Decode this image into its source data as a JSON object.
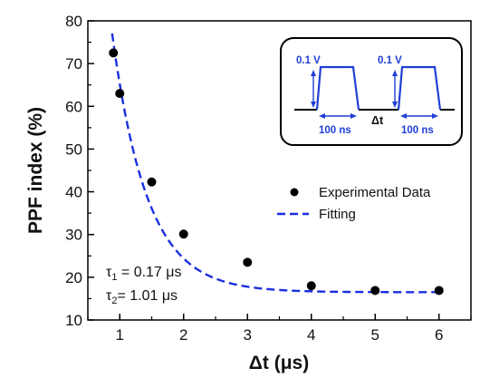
{
  "chart_data": {
    "type": "scatter",
    "xlabel": "Δt (μs)",
    "ylabel": "PPF index (%)",
    "xlim": [
      0.5,
      6.5
    ],
    "ylim": [
      10,
      80
    ],
    "x_ticks": [
      "1",
      "2",
      "3",
      "4",
      "5",
      "6"
    ],
    "y_ticks": [
      "10",
      "20",
      "30",
      "40",
      "50",
      "60",
      "70",
      "80"
    ],
    "grid": false,
    "legend_position": "center-right",
    "series": [
      {
        "name": "Experimental Data",
        "style": "markers",
        "color": "#000000",
        "x": [
          0.9,
          1.0,
          1.5,
          2.0,
          3.0,
          4.0,
          5.0,
          6.0
        ],
        "y": [
          72.5,
          63,
          42.3,
          30.1,
          23.5,
          18.0,
          16.9,
          16.9
        ]
      },
      {
        "name": "Fitting",
        "style": "dashed-line",
        "color": "#1a2fe0",
        "fit": {
          "y0": 16.5,
          "A": 300,
          "tau": 0.55
        }
      }
    ],
    "annotations": {
      "tau1": {
        "symbol": "τ",
        "subscript": "1",
        "text": " = 0.17 μs"
      },
      "tau2": {
        "symbol": "τ",
        "subscript": "2",
        "text": "= 1.01 μs"
      }
    },
    "inset": {
      "pulse_amplitude_1": "0.1 V",
      "pulse_amplitude_2": "0.1 V",
      "pulse_width_1": "100 ns",
      "pulse_width_2": "100 ns",
      "interval_label": "Δt",
      "pulse_color": "#1f3fd6"
    }
  }
}
